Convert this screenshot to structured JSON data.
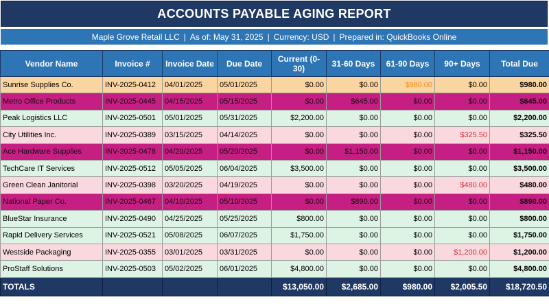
{
  "report": {
    "title": "ACCOUNTS PAYABLE AGING REPORT",
    "company": "Maple Grove Retail LLC",
    "as_of": "As of: May 31, 2025",
    "currency": "Currency: USD",
    "prepared_in": "Prepared in: QuickBooks Online",
    "separator": "|"
  },
  "columns": [
    "Vendor Name",
    "Invoice #",
    "Invoice Date",
    "Due Date",
    "Current (0-30)",
    "31-60 Days",
    "61-90 Days",
    "90+ Days",
    "Total Due"
  ],
  "rows": [
    {
      "vendor": "Sunrise Supplies Co.",
      "invoice": "INV-2025-0412",
      "inv_date": "04/01/2025",
      "due_date": "05/01/2025",
      "current": "$0.00",
      "d31_60": "$0.00",
      "d61_90": "$980.00",
      "d90": "$0.00",
      "total": "$980.00",
      "status_color": "#fbd5a0"
    },
    {
      "vendor": "Metro Office Products",
      "invoice": "INV-2025-0445",
      "inv_date": "04/15/2025",
      "due_date": "05/15/2025",
      "current": "$0.00",
      "d31_60": "$645.00",
      "d61_90": "$0.00",
      "d90": "$0.00",
      "total": "$645.00",
      "status_color": "#c51f83"
    },
    {
      "vendor": "Peak Logistics LLC",
      "invoice": "INV-2025-0501",
      "inv_date": "05/01/2025",
      "due_date": "05/31/2025",
      "current": "$2,200.00",
      "d31_60": "$0.00",
      "d61_90": "$0.00",
      "d90": "$0.00",
      "total": "$2,200.00",
      "status_color": "#ddf3e4"
    },
    {
      "vendor": "City Utilities Inc.",
      "invoice": "INV-2025-0389",
      "inv_date": "03/15/2025",
      "due_date": "04/14/2025",
      "current": "$0.00",
      "d31_60": "$0.00",
      "d61_90": "$0.00",
      "d90": "$325.50",
      "total": "$325.50",
      "status_color": "#f9d9de"
    },
    {
      "vendor": "Ace Hardware Supplies",
      "invoice": "INV-2025-0478",
      "inv_date": "04/20/2025",
      "due_date": "05/20/2025",
      "current": "$0.00",
      "d31_60": "$1,150.00",
      "d61_90": "$0.00",
      "d90": "$0.00",
      "total": "$1,150.00",
      "status_color": "#c51f83"
    },
    {
      "vendor": "TechCare IT Services",
      "invoice": "INV-2025-0512",
      "inv_date": "05/05/2025",
      "due_date": "06/04/2025",
      "current": "$3,500.00",
      "d31_60": "$0.00",
      "d61_90": "$0.00",
      "d90": "$0.00",
      "total": "$3,500.00",
      "status_color": "#ddf3e4"
    },
    {
      "vendor": "Green Clean Janitorial",
      "invoice": "INV-2025-0398",
      "inv_date": "03/20/2025",
      "due_date": "04/19/2025",
      "current": "$0.00",
      "d31_60": "$0.00",
      "d61_90": "$0.00",
      "d90": "$480.00",
      "total": "$480.00",
      "status_color": "#f9d9de"
    },
    {
      "vendor": "National Paper Co.",
      "invoice": "INV-2025-0467",
      "inv_date": "04/10/2025",
      "due_date": "05/10/2025",
      "current": "$0.00",
      "d31_60": "$890.00",
      "d61_90": "$0.00",
      "d90": "$0.00",
      "total": "$890.00",
      "status_color": "#c51f83"
    },
    {
      "vendor": "BlueStar Insurance",
      "invoice": "INV-2025-0490",
      "inv_date": "04/25/2025",
      "due_date": "05/25/2025",
      "current": "$800.00",
      "d31_60": "$0.00",
      "d61_90": "$0.00",
      "d90": "$0.00",
      "total": "$800.00",
      "status_color": "#ddf3e4"
    },
    {
      "vendor": "Rapid Delivery Services",
      "invoice": "INV-2025-0521",
      "inv_date": "05/08/2025",
      "due_date": "06/07/2025",
      "current": "$1,750.00",
      "d31_60": "$0.00",
      "d61_90": "$0.00",
      "d90": "$0.00",
      "total": "$1,750.00",
      "status_color": "#ddf3e4"
    },
    {
      "vendor": "Westside Packaging",
      "invoice": "INV-2025-0355",
      "inv_date": "03/01/2025",
      "due_date": "03/31/2025",
      "current": "$0.00",
      "d31_60": "$0.00",
      "d61_90": "$0.00",
      "d90": "$1,200.00",
      "total": "$1,200.00",
      "status_color": "#f9d9de"
    },
    {
      "vendor": "ProStaff Solutions",
      "invoice": "INV-2025-0503",
      "inv_date": "05/02/2025",
      "due_date": "06/01/2025",
      "current": "$4,800.00",
      "d31_60": "$0.00",
      "d61_90": "$0.00",
      "d90": "$0.00",
      "total": "$4,800.00",
      "status_color": "#ddf3e4"
    }
  ],
  "totals": {
    "label": "TOTALS",
    "current": "$13,050.00",
    "d31_60": "$2,685.00",
    "d61_90": "$980.00",
    "d90": "$2,005.50",
    "total": "$18,720.50"
  },
  "colors": {
    "title_bg": "#1f3864",
    "header_bg": "#2e75b6",
    "orange": "#fbd5a0",
    "magenta": "#c51f83",
    "green": "#ddf3e4",
    "pink": "#f9d9de",
    "warn_orange": "#f08a24",
    "warn_red": "#d0303a"
  }
}
